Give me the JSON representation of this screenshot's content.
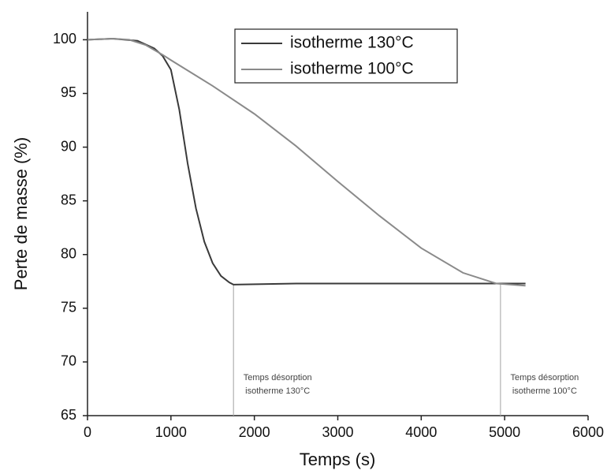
{
  "chart_data": {
    "type": "line",
    "xlabel": "Temps (s)",
    "ylabel": "Perte de masse (%)",
    "xlim": [
      0,
      6000
    ],
    "ylim": [
      65,
      102.6
    ],
    "xticks": [
      0,
      1000,
      2000,
      3000,
      4000,
      5000,
      6000
    ],
    "yticks": [
      65,
      70,
      75,
      80,
      85,
      90,
      95,
      100
    ],
    "legend": "upper center",
    "series": [
      {
        "name": "isotherme 130°C",
        "color": "#3a3a3a",
        "x": [
          0,
          300,
          600,
          800,
          900,
          1000,
          1100,
          1200,
          1300,
          1400,
          1500,
          1600,
          1700,
          1750,
          2500,
          3500,
          4500,
          5250
        ],
        "values": [
          100,
          100.1,
          99.9,
          99.2,
          98.5,
          97.2,
          93.5,
          88.5,
          84.3,
          81.2,
          79.2,
          78.0,
          77.4,
          77.2,
          77.3,
          77.3,
          77.3,
          77.3
        ]
      },
      {
        "name": "isotherme 100°C",
        "color": "#8a8a8a",
        "x": [
          0,
          300,
          500,
          700,
          900,
          1000,
          1500,
          2000,
          2500,
          3000,
          3500,
          4000,
          4500,
          4900,
          5250
        ],
        "values": [
          100,
          100.1,
          100,
          99.5,
          98.6,
          98.1,
          95.7,
          93.1,
          90.1,
          86.8,
          83.6,
          80.6,
          78.3,
          77.3,
          77.1
        ]
      }
    ],
    "annotations": [
      {
        "x": 1750,
        "y": 77.2,
        "lines": [
          "Temps désorption",
          "isotherme 130°C"
        ]
      },
      {
        "x": 4950,
        "y": 77.3,
        "lines": [
          "Temps désorption",
          "isotherme 100°C"
        ]
      }
    ]
  }
}
